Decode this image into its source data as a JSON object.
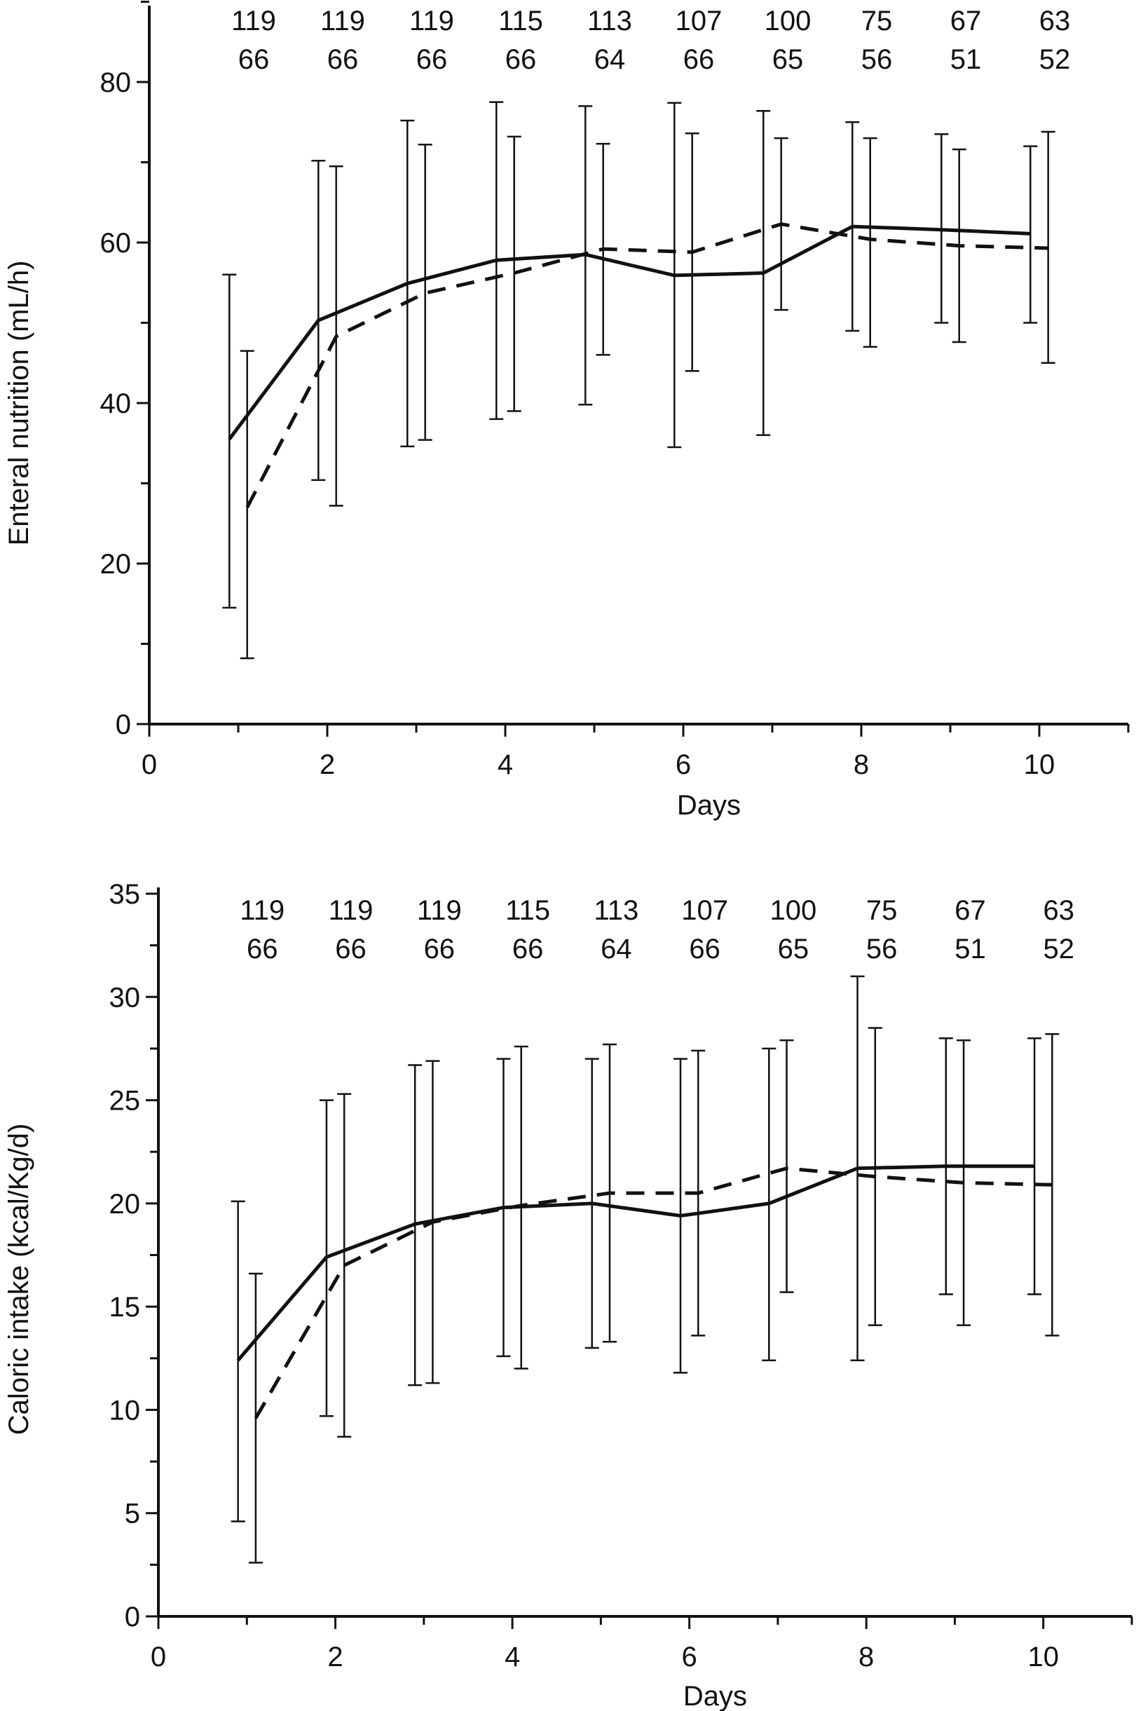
{
  "chart_data": [
    {
      "type": "line",
      "xlabel": "Days",
      "ylabel": "Enteral nutrition (mL/h)",
      "xlim": [
        0,
        11
      ],
      "ylim": [
        0,
        90
      ],
      "xticks": [
        0,
        2,
        4,
        6,
        8,
        10
      ],
      "yticks": [
        0,
        20,
        40,
        60,
        80
      ],
      "grid": false,
      "counts": {
        "x": [
          1,
          2,
          3,
          4,
          5,
          6,
          7,
          8,
          9,
          10
        ],
        "row1": [
          "119",
          "119",
          "119",
          "115",
          "113",
          "107",
          "100",
          "75",
          "67",
          "63"
        ],
        "row2": [
          "66",
          "66",
          "66",
          "66",
          "64",
          "66",
          "65",
          "56",
          "51",
          "52"
        ]
      },
      "series": [
        {
          "style": "solid",
          "x": [
            0.9,
            1.9,
            2.9,
            3.9,
            4.9,
            5.9,
            6.9,
            7.9,
            8.9,
            9.9
          ],
          "y": [
            35.5,
            50.3,
            54.9,
            57.8,
            58.5,
            55.9,
            56.2,
            62.0,
            61.6,
            61.1
          ],
          "err_low": [
            14.5,
            30.4,
            34.6,
            38.0,
            39.8,
            34.5,
            36.0,
            49.0,
            50.0,
            50.0
          ],
          "err_high": [
            56.0,
            70.2,
            75.2,
            77.5,
            77.0,
            77.4,
            76.4,
            75.0,
            73.5,
            72.0
          ]
        },
        {
          "style": "dashed",
          "x": [
            1.1,
            2.1,
            3.1,
            4.1,
            5.1,
            6.1,
            7.1,
            8.1,
            9.1,
            10.1
          ],
          "y": [
            27.0,
            48.3,
            53.7,
            56.2,
            59.2,
            58.8,
            62.3,
            60.4,
            59.6,
            59.3
          ],
          "err_low": [
            8.2,
            27.2,
            35.4,
            39.0,
            46.0,
            44.0,
            51.6,
            47.0,
            47.6,
            45.0
          ],
          "err_high": [
            46.5,
            69.5,
            72.2,
            73.2,
            72.3,
            73.6,
            73.0,
            73.0,
            71.6,
            73.8
          ]
        }
      ]
    },
    {
      "type": "line",
      "xlabel": "Days",
      "ylabel": "Caloric intake (kcal/Kg/d)",
      "xlim": [
        0,
        11
      ],
      "ylim": [
        0,
        35
      ],
      "xticks": [
        0,
        2,
        4,
        6,
        8,
        10
      ],
      "yticks": [
        0,
        5,
        10,
        15,
        20,
        25,
        30,
        35
      ],
      "grid": false,
      "counts": {
        "x": [
          1,
          2,
          3,
          4,
          5,
          6,
          7,
          8,
          9,
          10
        ],
        "row1": [
          "119",
          "119",
          "119",
          "115",
          "113",
          "107",
          "100",
          "75",
          "67",
          "63"
        ],
        "row2": [
          "66",
          "66",
          "66",
          "66",
          "64",
          "66",
          "65",
          "56",
          "51",
          "52"
        ]
      },
      "series": [
        {
          "style": "solid",
          "x": [
            0.9,
            1.9,
            2.9,
            3.9,
            4.9,
            5.9,
            6.9,
            7.9,
            8.9,
            9.9
          ],
          "y": [
            12.4,
            17.4,
            19.0,
            19.8,
            20.0,
            19.4,
            20.0,
            21.7,
            21.8,
            21.8
          ],
          "err_low": [
            4.6,
            9.7,
            11.2,
            12.6,
            13.0,
            11.8,
            12.4,
            12.4,
            15.6,
            15.6
          ],
          "err_high": [
            20.1,
            25.0,
            26.7,
            27.0,
            27.0,
            27.0,
            27.5,
            31.0,
            28.0,
            28.0
          ]
        },
        {
          "style": "dashed",
          "x": [
            1.1,
            2.1,
            3.1,
            4.1,
            5.1,
            6.1,
            7.1,
            8.1,
            9.1,
            10.1
          ],
          "y": [
            9.6,
            17.0,
            19.1,
            19.9,
            20.5,
            20.5,
            21.7,
            21.3,
            21.0,
            20.9
          ],
          "err_low": [
            2.6,
            8.7,
            11.3,
            12.0,
            13.3,
            13.6,
            15.7,
            14.1,
            14.1,
            13.6
          ],
          "err_high": [
            16.6,
            25.3,
            26.9,
            27.6,
            27.7,
            27.4,
            27.9,
            28.5,
            27.9,
            28.2
          ]
        }
      ]
    }
  ]
}
